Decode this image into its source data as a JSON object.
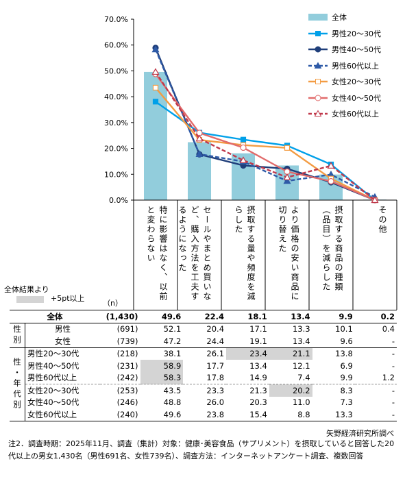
{
  "chart_data": {
    "type": "bar",
    "y_ticks": [
      "0.0%",
      "10.0%",
      "20.0%",
      "30.0%",
      "40.0%",
      "50.0%",
      "60.0%",
      "70.0%"
    ],
    "ylim": [
      0,
      70
    ],
    "categories": [
      "特に影響はなく、以前と変わらない",
      "セールやまとめ買いなど、購入方法を工夫するようになった",
      "摂取する量や頻度を減らした",
      "より価格の安い商品に切り替えた",
      "摂取する商品の種類（品目）を減らした",
      "その他"
    ],
    "series": [
      {
        "name": "全体",
        "kind": "bar",
        "color": "#92cddc",
        "values": [
          49.6,
          22.4,
          18.1,
          13.4,
          9.9,
          0.2
        ]
      },
      {
        "name": "男性20～30代",
        "kind": "line",
        "color": "#00a0e9",
        "marker": "square",
        "dash": false,
        "values": [
          38.1,
          26.1,
          23.4,
          21.1,
          13.8,
          0
        ]
      },
      {
        "name": "男性40～50代",
        "kind": "line",
        "color": "#1f3e7a",
        "marker": "circle",
        "dash": false,
        "values": [
          58.9,
          17.7,
          13.4,
          12.1,
          6.9,
          0
        ]
      },
      {
        "name": "男性60代以上",
        "kind": "line",
        "color": "#2e5aa7",
        "marker": "triangle",
        "dash": true,
        "values": [
          58.3,
          17.8,
          14.9,
          7.4,
          9.9,
          1.2
        ]
      },
      {
        "name": "女性20～30代",
        "kind": "line",
        "color": "#f39c43",
        "marker": "square-open",
        "dash": false,
        "values": [
          43.5,
          23.3,
          21.3,
          20.2,
          8.3,
          0
        ]
      },
      {
        "name": "女性40～50代",
        "kind": "line",
        "color": "#e16b6b",
        "marker": "circle-open",
        "dash": false,
        "values": [
          48.8,
          26.0,
          20.3,
          11.0,
          7.3,
          0
        ]
      },
      {
        "name": "女性60代以上",
        "kind": "line",
        "color": "#c0394b",
        "marker": "triangle-open",
        "dash": true,
        "values": [
          49.6,
          23.8,
          15.4,
          8.8,
          13.3,
          0
        ]
      }
    ]
  },
  "key": {
    "title": "全体結果より",
    "label": "+5pt以上"
  },
  "table": {
    "n_header": "（n）",
    "total": {
      "label": "全体",
      "n": "(1,430)",
      "values": [
        "49.6",
        "22.4",
        "18.1",
        "13.4",
        "9.9",
        "0.2"
      ]
    },
    "gender_group": "性別",
    "gender_rows": [
      {
        "label": "男性",
        "n": "(691)",
        "values": [
          "52.1",
          "20.4",
          "17.1",
          "13.3",
          "10.1",
          "0.4"
        ],
        "hl": [
          0,
          0,
          0,
          0,
          0,
          0
        ]
      },
      {
        "label": "女性",
        "n": "(739)",
        "values": [
          "47.2",
          "24.4",
          "19.1",
          "13.4",
          "9.6",
          "-"
        ],
        "hl": [
          0,
          0,
          0,
          0,
          0,
          0
        ]
      }
    ],
    "age_group": "性・年代別",
    "age_rows": [
      {
        "label": "男性20～30代",
        "n": "(218)",
        "values": [
          "38.1",
          "26.1",
          "23.4",
          "21.1",
          "13.8",
          "-"
        ],
        "hl": [
          0,
          0,
          1,
          1,
          0,
          0
        ]
      },
      {
        "label": "男性40～50代",
        "n": "(231)",
        "values": [
          "58.9",
          "17.7",
          "13.4",
          "12.1",
          "6.9",
          "-"
        ],
        "hl": [
          1,
          0,
          0,
          0,
          0,
          0
        ]
      },
      {
        "label": "男性60代以上",
        "n": "(242)",
        "values": [
          "58.3",
          "17.8",
          "14.9",
          "7.4",
          "9.9",
          "1.2"
        ],
        "hl": [
          1,
          0,
          0,
          0,
          0,
          0
        ]
      },
      {
        "label": "女性20～30代",
        "n": "(253)",
        "values": [
          "43.5",
          "23.3",
          "21.3",
          "20.2",
          "8.3",
          "-"
        ],
        "hl": [
          0,
          0,
          0,
          1,
          0,
          0
        ]
      },
      {
        "label": "女性40～50代",
        "n": "(246)",
        "values": [
          "48.8",
          "26.0",
          "20.3",
          "11.0",
          "7.3",
          "-"
        ],
        "hl": [
          0,
          0,
          0,
          0,
          0,
          0
        ]
      },
      {
        "label": "女性60代以上",
        "n": "(240)",
        "values": [
          "49.6",
          "23.8",
          "15.4",
          "8.8",
          "13.3",
          "-"
        ],
        "hl": [
          0,
          0,
          0,
          0,
          0,
          0
        ]
      }
    ]
  },
  "source": "矢野経済研究所調べ",
  "note": "注2．調査時期：2025年11月、調査（集計）対象：健康･美容食品（サプリメント）を摂取していると回答した20代以上の男女1,430名（男性691名、女性739名）、調査方法：インターネットアンケート調査、複数回答"
}
